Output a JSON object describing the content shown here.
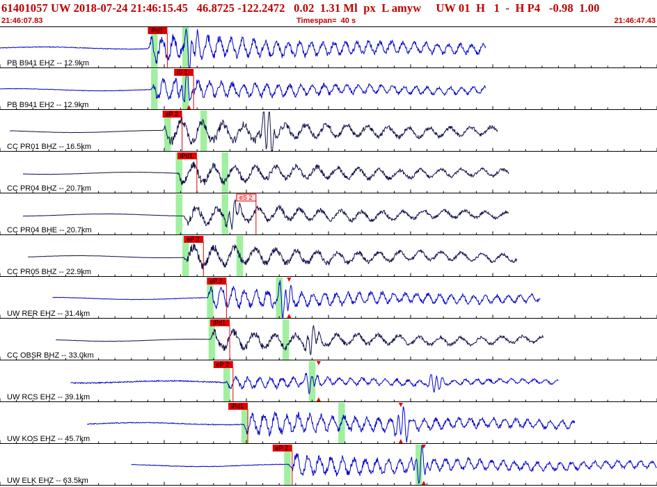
{
  "header": {
    "title": "61401057 UW 2018-07-24 21:46:15.45   46.8725 -122.2472   0.02  1.31 Ml  px  L amyw     UW 01  H   1  -  H P4   -0.98  1.00",
    "start_time": "21:46:07.83",
    "timespan": "Timespan=  40 s",
    "end_time": "21:46:47.43"
  },
  "colors": {
    "text": "#c00000",
    "trace_blue": "#0000cc",
    "trace_dark": "#10104a",
    "pick": "#e00000",
    "window": "#a0f0a0"
  },
  "chart_data": {
    "type": "line",
    "title": "",
    "x_unit": "s",
    "xlim": [
      0,
      40
    ],
    "traces": [
      {
        "label": "PB B941 EHZ -- 12.9km",
        "color": "blue",
        "data_start": 0,
        "data_end": 29.6,
        "onset": 9.0,
        "amp": 1.0,
        "noise": 0.18,
        "bursts": [
          [
            11.6,
            1.0
          ]
        ],
        "picks": [
          {
            "label": "iPd1",
            "t": 9.0,
            "style": "filled"
          }
        ],
        "windows": [
          [
            9.2,
            9.6
          ],
          [
            11.1,
            11.5
          ]
        ],
        "markers": []
      },
      {
        "label": "PB B941 EH2 -- 12.9km",
        "color": "blue",
        "data_start": 0,
        "data_end": 29.6,
        "onset": 9.2,
        "amp": 0.75,
        "noise": 0.12,
        "bursts": [
          [
            11.3,
            1.3
          ]
        ],
        "picks": [
          {
            "label": "iS 1",
            "t": 10.6,
            "style": "filled"
          }
        ],
        "windows": [
          [
            9.2,
            9.6
          ],
          [
            11.1,
            11.5
          ]
        ],
        "markers": [
          11.5
        ]
      },
      {
        "label": "CC PR01 BHZ -- 16.5km",
        "color": "dark",
        "data_start": 0.6,
        "data_end": 30.3,
        "onset": 9.9,
        "amp": 0.95,
        "noise": 0.06,
        "bursts": [
          [
            16.3,
            1.5
          ]
        ],
        "picks": [
          {
            "label": "eP 2",
            "t": 9.9,
            "style": "filled"
          }
        ],
        "windows": [
          [
            10.0,
            10.4
          ],
          [
            12.2,
            12.6
          ]
        ],
        "markers": []
      },
      {
        "label": "CC PR04 BHZ -- 20.7km",
        "color": "dark",
        "data_start": 1.4,
        "data_end": 31.0,
        "onset": 10.8,
        "amp": 0.8,
        "noise": 0.06,
        "bursts": [],
        "picks": [
          {
            "label": "iPd1",
            "t": 10.8,
            "style": "filled"
          }
        ],
        "windows": [
          [
            10.7,
            11.1
          ],
          [
            13.5,
            13.9
          ]
        ],
        "markers": []
      },
      {
        "label": "CC PR04 BHE -- 20.7km",
        "color": "dark",
        "data_start": 1.4,
        "data_end": 31.0,
        "onset": 11.2,
        "amp": 0.75,
        "noise": 0.06,
        "bursts": [
          [
            14.2,
            1.0
          ]
        ],
        "picks": [
          {
            "label": "eS 2",
            "t": 14.4,
            "style": "outline"
          }
        ],
        "windows": [
          [
            10.7,
            11.1
          ],
          [
            13.5,
            13.9
          ]
        ],
        "markers": []
      },
      {
        "label": "CC PR05 BHZ -- 22.9km",
        "color": "dark",
        "data_start": 1.7,
        "data_end": 31.5,
        "onset": 11.2,
        "amp": 0.85,
        "noise": 0.05,
        "bursts": [],
        "picks": [
          {
            "label": "eP 2",
            "t": 11.2,
            "style": "filled"
          }
        ],
        "windows": [
          [
            11.1,
            11.5
          ],
          [
            14.4,
            14.8
          ]
        ],
        "markers": []
      },
      {
        "label": "UW RER EHZ -- 31.4km",
        "color": "blue",
        "data_start": 3.2,
        "data_end": 32.9,
        "onset": 12.6,
        "amp": 0.8,
        "noise": 0.1,
        "bursts": [
          [
            17.3,
            1.2
          ]
        ],
        "picks": [
          {
            "label": "eP 2",
            "t": 12.6,
            "style": "filled"
          }
        ],
        "windows": [
          [
            12.6,
            13.0
          ],
          [
            16.8,
            17.2
          ]
        ],
        "markers": [
          17.6
        ]
      },
      {
        "label": "CC OBSR BHZ -- 33.0km",
        "color": "dark",
        "data_start": 3.4,
        "data_end": 33.1,
        "onset": 12.8,
        "amp": 0.75,
        "noise": 0.07,
        "bursts": [
          [
            19.0,
            1.0
          ]
        ],
        "picks": [
          {
            "label": "iPd1",
            "t": 12.8,
            "style": "filled"
          }
        ],
        "windows": [
          [
            12.7,
            13.1
          ],
          [
            17.2,
            17.6
          ]
        ],
        "markers": []
      },
      {
        "label": "UW RCS EHZ -- 39.1km",
        "color": "blue",
        "data_start": 4.3,
        "data_end": 34.0,
        "onset": 13.7,
        "amp": 0.45,
        "noise": 0.25,
        "bursts": [
          [
            18.9,
            1.2
          ],
          [
            26.5,
            1.3
          ]
        ],
        "picks": [
          {
            "label": "eP 2",
            "t": 13.0,
            "style": "filled"
          }
        ],
        "windows": [
          [
            13.6,
            14.0
          ],
          [
            18.8,
            19.2
          ]
        ],
        "markers": [
          19.4
        ]
      },
      {
        "label": "UW KOS EHZ -- 45.7km",
        "color": "blue",
        "data_start": 5.3,
        "data_end": 35.0,
        "onset": 14.8,
        "amp": 0.85,
        "noise": 0.2,
        "bursts": [
          [
            24.5,
            1.2
          ]
        ],
        "picks": [
          {
            "label": "iPd1",
            "t": 13.9,
            "style": "filled"
          }
        ],
        "windows": [
          [
            14.7,
            15.1
          ],
          [
            20.6,
            21.0
          ]
        ],
        "markers": [
          24.4
        ]
      },
      {
        "label": "UW ELK EHZ -- 63.5km",
        "color": "blue",
        "data_start": 8.0,
        "data_end": 40.0,
        "onset": 17.6,
        "amp": 0.8,
        "noise": 0.15,
        "bursts": [
          [
            25.6,
            1.2
          ]
        ],
        "picks": [
          {
            "label": "eP 2",
            "t": 16.6,
            "style": "filled"
          }
        ],
        "windows": [
          [
            17.3,
            17.7
          ],
          [
            25.3,
            25.7
          ]
        ],
        "markers": [
          25.8
        ]
      }
    ]
  }
}
